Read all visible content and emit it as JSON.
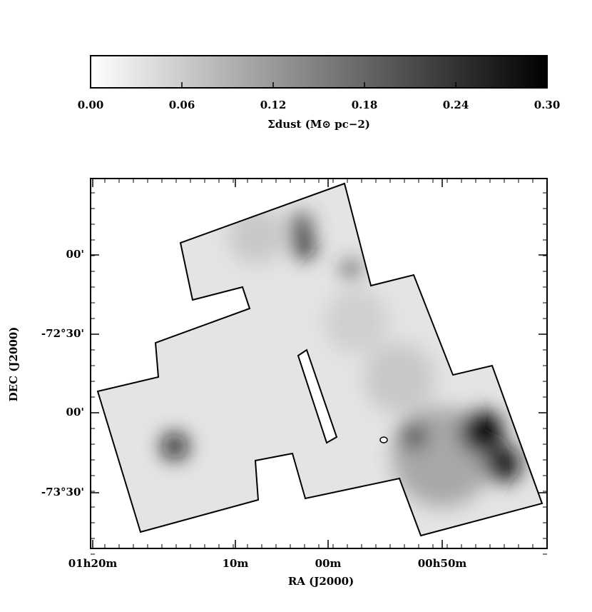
{
  "chart_data": {
    "type": "image",
    "colorbar": {
      "label": "Σdust (M⊙ pc−2)",
      "lim": [
        0,
        0.3
      ],
      "ticks": [
        {
          "value": 0,
          "label": "0.00"
        },
        {
          "value": 0.06,
          "label": "0.06"
        },
        {
          "value": 0.12,
          "label": "0.12"
        },
        {
          "value": 0.18,
          "label": "0.18"
        },
        {
          "value": 0.24,
          "label": "0.24"
        },
        {
          "value": 0.3,
          "label": "0.30"
        }
      ]
    },
    "xlabel": "RA (J2000)",
    "ylabel": "DEC (J2000)",
    "xtick_labels": [
      "01h20m",
      "10m",
      "00m",
      "00h50m"
    ],
    "ytick_labels": [
      "00'",
      "-72°30'",
      "00'",
      "-73°30'"
    ]
  }
}
